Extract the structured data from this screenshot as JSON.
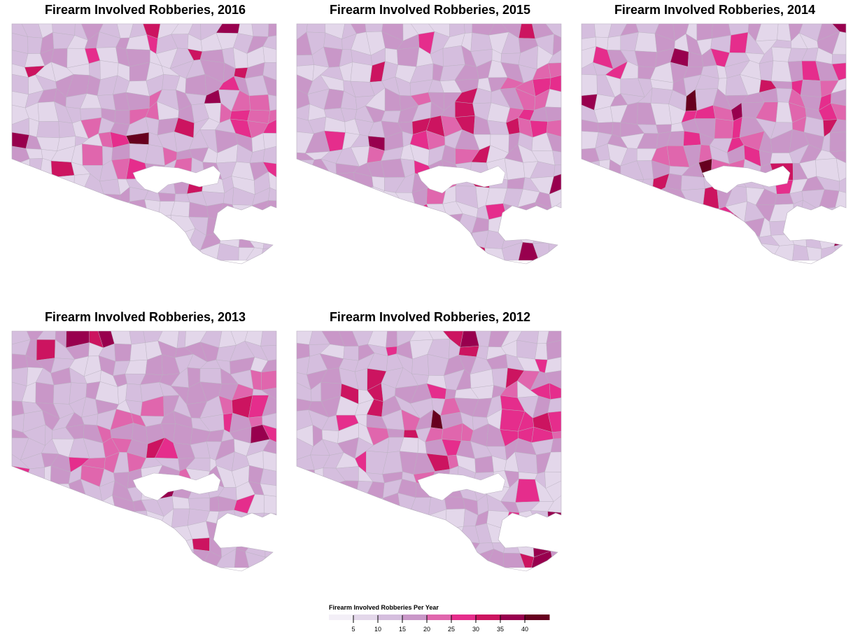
{
  "panels": [
    {
      "title": "Firearm Involved Robberies, 2016",
      "year": 2016,
      "seed": 16
    },
    {
      "title": "Firearm Involved Robberies, 2015",
      "year": 2015,
      "seed": 15
    },
    {
      "title": "Firearm Involved Robberies, 2014",
      "year": 2014,
      "seed": 14
    },
    {
      "title": "Firearm Involved Robberies, 2013",
      "year": 2013,
      "seed": 13
    },
    {
      "title": "Firearm Involved Robberies, 2012",
      "year": 2012,
      "seed": 12
    }
  ],
  "legend": {
    "title": "Firearm Involved Robberies Per Year",
    "ticks": [
      "5",
      "10",
      "15",
      "20",
      "25",
      "30",
      "35",
      "40"
    ],
    "colors": [
      "#f3eff7",
      "#e3d7ea",
      "#d5bede",
      "#c997c8",
      "#e066ad",
      "#e52d8c",
      "#cc1460",
      "#98004e",
      "#67001f"
    ]
  },
  "colors": {
    "background": "#ffffff",
    "boundary": "#b9b0bf",
    "water": "#ffffff"
  }
}
